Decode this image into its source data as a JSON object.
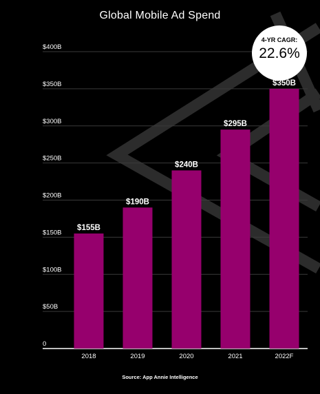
{
  "colors": {
    "bar": "#96006d",
    "background": "#000000",
    "grid": "#3a3a3a",
    "text": "#ffffff"
  },
  "badge": {
    "label": "4-YR CAGR:",
    "value": "22.6%"
  },
  "source": "Source: App Annie Intelligence",
  "chart_data": {
    "type": "bar",
    "title": "Global Mobile Ad Spend",
    "xlabel": "",
    "ylabel": "",
    "categories": [
      "2018",
      "2019",
      "2020",
      "2021",
      "2022F"
    ],
    "values": [
      155,
      190,
      240,
      295,
      350
    ],
    "data_labels": [
      "$155B",
      "$190B",
      "$240B",
      "$295B",
      "$350B"
    ],
    "y_ticks": [
      0,
      50,
      100,
      150,
      200,
      250,
      300,
      350,
      400
    ],
    "y_tick_labels": [
      "0",
      "$50B",
      "$100B",
      "$150B",
      "$200B",
      "$250B",
      "$300B",
      "$350B",
      "$400B"
    ],
    "ylim": [
      0,
      400
    ],
    "grid": true,
    "legend": "none"
  }
}
